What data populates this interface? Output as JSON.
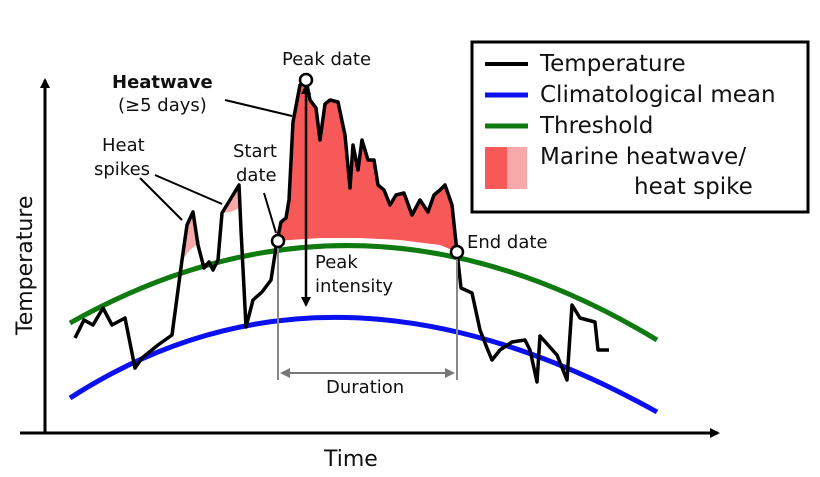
{
  "axes": {
    "x_label": "Time",
    "y_label": "Temperature"
  },
  "legend": {
    "items": [
      {
        "label": "Temperature",
        "color": "#000000",
        "kind": "line"
      },
      {
        "label": "Climatological mean",
        "color": "#0a10f0",
        "kind": "line"
      },
      {
        "label": "Threshold",
        "color": "#0f7a10",
        "kind": "line"
      },
      {
        "label": "Marine heatwave/",
        "label_line2": "heat spike",
        "colors": [
          "#f75858",
          "#f7a8a8"
        ],
        "kind": "patch"
      }
    ]
  },
  "annotations": {
    "heatwave_title": "Heatwave",
    "heatwave_subtitle": "(≥5 days)",
    "heat_spikes_line1": "Heat",
    "heat_spikes_line2": "spikes",
    "start_date_line1": "Start",
    "start_date_line2": "date",
    "peak_date": "Peak date",
    "end_date": "End date",
    "peak_intensity_line1": "Peak",
    "peak_intensity_line2": "intensity",
    "duration": "Duration"
  },
  "colors": {
    "temperature": "#000000",
    "climatology": "#0a10f0",
    "threshold": "#0f7a10",
    "heatwave_fill": "#f75858",
    "spike_fill": "#f7a8a8",
    "marker_gray": "#888888"
  }
}
